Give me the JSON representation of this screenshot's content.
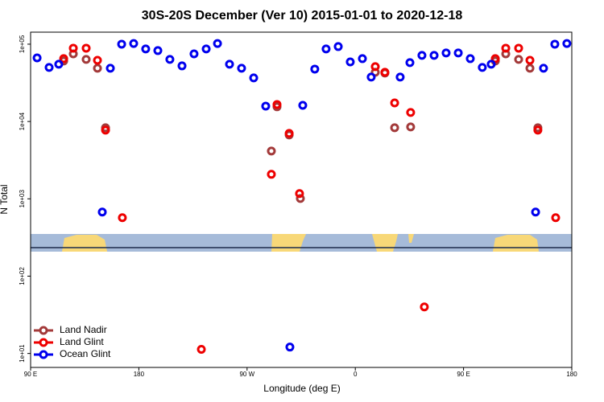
{
  "chart_data": {
    "type": "scatter",
    "title": "30S-20S December (Ver 10)   2015-01-01 to 2020-12-18",
    "xlabel": "Longitude (deg E)",
    "ylabel": "N Total",
    "xlim": [
      90,
      540
    ],
    "xticks": [
      {
        "value": 90,
        "label": "90 E"
      },
      180,
      {
        "value": 270,
        "label": "90 W"
      },
      {
        "value": 360,
        "label": "0"
      },
      {
        "value": 450,
        "label": "90 E"
      },
      {
        "value": 540,
        "label": "180"
      }
    ],
    "ylim": [
      6.6,
      143000
    ],
    "ylog": true,
    "yticks": [
      {
        "value": 10,
        "label": "1e+01"
      },
      {
        "value": 100,
        "label": "1e+02"
      },
      {
        "value": 1000,
        "label": "1e+03"
      },
      {
        "value": 10000,
        "label": "1e+04"
      },
      {
        "value": 100000,
        "label": "1e+05"
      }
    ],
    "legend": "bottomleft",
    "series": [
      {
        "name": "Land Nadir",
        "color": "#a33a3a",
        "x": [
          117.5,
          125.5,
          136.2,
          145.6,
          152.3,
          290.2,
          294.9,
          305.0,
          314.3,
          376.6,
          384.6,
          392.7,
          406.0,
          476.4,
          485.1,
          495.8,
          505.2,
          511.8
        ],
        "values": [
          60600,
          75000,
          63500,
          48800,
          8300,
          4150,
          15500,
          6700,
          1010,
          43300,
          42300,
          8300,
          8510,
          60600,
          75000,
          63500,
          48800,
          8300
        ]
      },
      {
        "name": "Land Glint",
        "color": "#ee0000",
        "x": [
          117.5,
          125.5,
          136.2,
          145.6,
          152.3,
          166.3,
          232.0,
          290.2,
          294.9,
          305.0,
          313.6,
          376.6,
          384.6,
          392.7,
          406.0,
          417.4,
          476.4,
          485.1,
          495.8,
          505.2,
          511.8,
          526.6
        ],
        "values": [
          65000,
          88700,
          88700,
          61900,
          7730,
          570,
          11.3,
          2075,
          16600,
          7030,
          1170,
          51200,
          43300,
          17400,
          13100,
          40.0,
          65000,
          88700,
          88700,
          61900,
          7730,
          570
        ]
      },
      {
        "name": "Ocean Glint",
        "color": "#0000ee",
        "x": [
          95.4,
          105.4,
          113.4,
          149.6,
          156.3,
          165.7,
          175.7,
          185.7,
          195.8,
          205.8,
          215.9,
          225.9,
          236.0,
          245.4,
          255.4,
          265.4,
          275.5,
          285.5,
          305.6,
          316.3,
          326.3,
          335.7,
          345.8,
          355.8,
          365.9,
          373.2,
          397.3,
          405.4,
          415.4,
          425.5,
          435.5,
          445.6,
          455.6,
          465.6,
          473.0,
          509.9,
          516.5,
          525.9,
          535.9
        ],
        "values": [
          66500,
          50000,
          55000,
          675,
          48800,
          100000,
          102000,
          86700,
          82600,
          63500,
          52400,
          75000,
          86700,
          102000,
          55000,
          48800,
          36600,
          15800,
          12.1,
          16200,
          47600,
          86700,
          93100,
          59000,
          65000,
          37500,
          37500,
          57700,
          71600,
          71600,
          76900,
          76900,
          65000,
          50000,
          55000,
          675,
          48800,
          100000,
          102000
        ]
      }
    ]
  }
}
